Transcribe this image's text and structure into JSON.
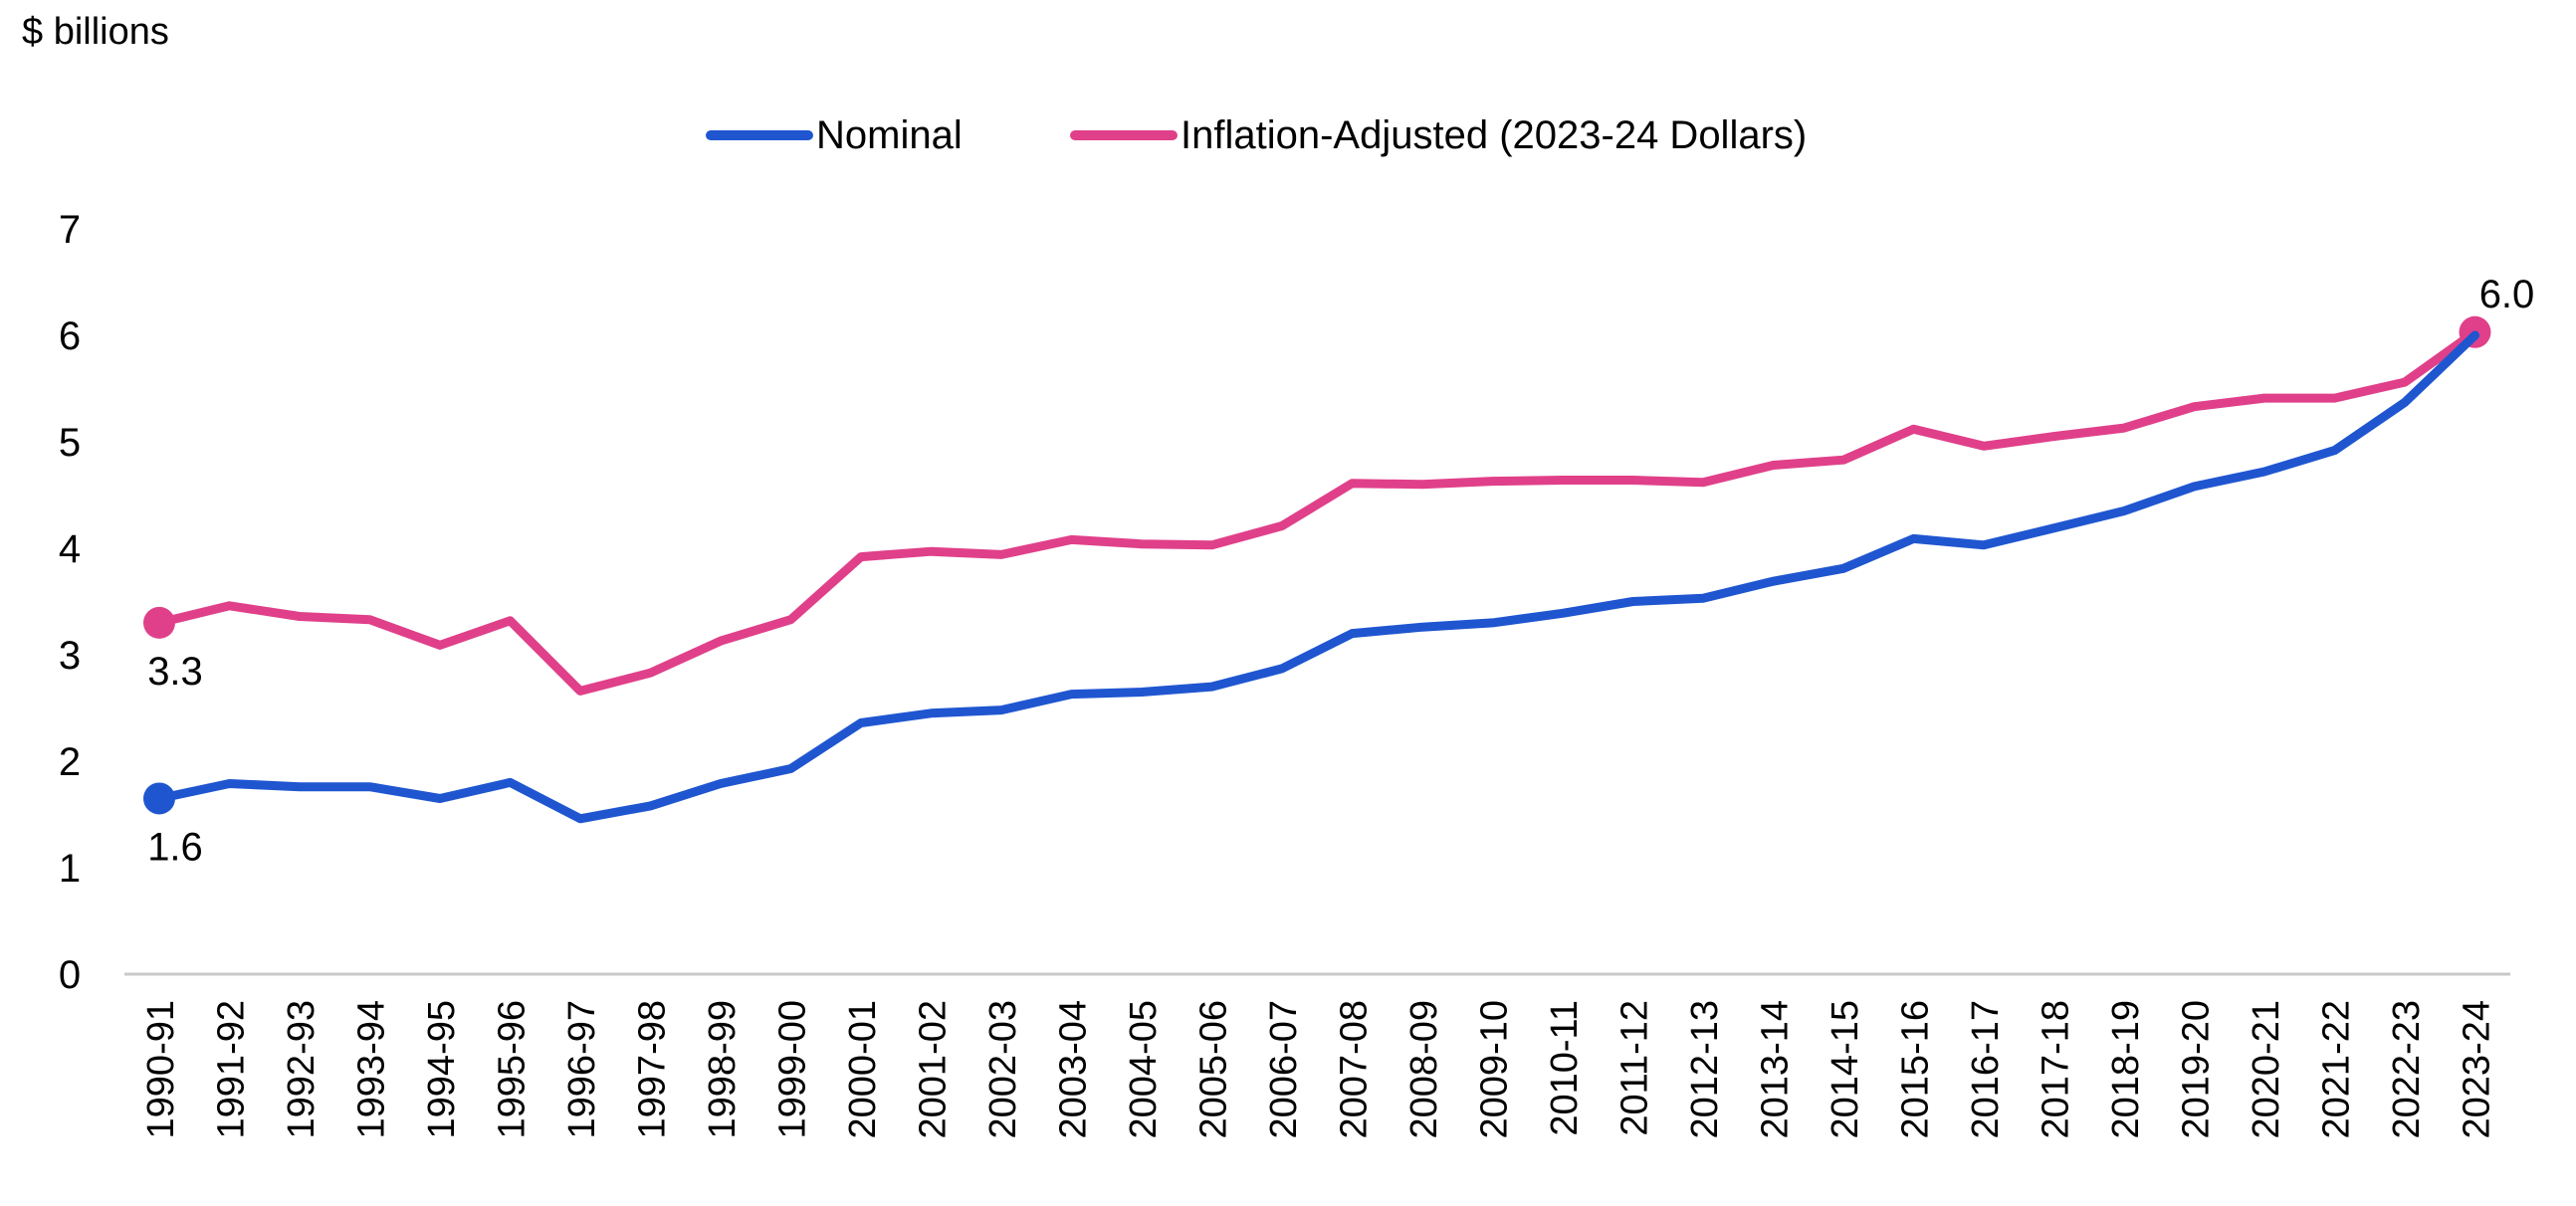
{
  "chart_data": {
    "type": "line",
    "ylabel": "$ billions",
    "ylim": [
      0,
      7
    ],
    "yticks": [
      "0",
      "1",
      "2",
      "3",
      "4",
      "5",
      "6",
      "7"
    ],
    "legend_position": "top-center",
    "grid": false,
    "categories": [
      "1990-91",
      "1991-92",
      "1992-93",
      "1993-94",
      "1994-95",
      "1995-96",
      "1996-97",
      "1997-98",
      "1998-99",
      "1999-00",
      "2000-01",
      "2001-02",
      "2002-03",
      "2003-04",
      "2004-05",
      "2005-06",
      "2006-07",
      "2007-08",
      "2008-09",
      "2009-10",
      "2010-11",
      "2011-12",
      "2012-13",
      "2013-14",
      "2014-15",
      "2015-16",
      "2016-17",
      "2017-18",
      "2018-19",
      "2019-20",
      "2020-21",
      "2021-22",
      "2022-23",
      "2023-24"
    ],
    "series": [
      {
        "name": "Nominal",
        "color": "#1f56d0",
        "values": [
          1.65,
          1.79,
          1.76,
          1.76,
          1.65,
          1.8,
          1.46,
          1.58,
          1.79,
          1.93,
          2.36,
          2.45,
          2.48,
          2.63,
          2.65,
          2.7,
          2.87,
          3.2,
          3.26,
          3.3,
          3.39,
          3.5,
          3.53,
          3.69,
          3.81,
          4.09,
          4.03,
          4.19,
          4.35,
          4.58,
          4.72,
          4.92,
          5.37,
          6.0
        ],
        "labels": [
          {
            "index": 0,
            "text": "1.6",
            "position": "below"
          }
        ]
      },
      {
        "name": "Inflation-Adjusted (2023-24 Dollars)",
        "color": "#e0408a",
        "values": [
          3.3,
          3.46,
          3.36,
          3.33,
          3.09,
          3.32,
          2.66,
          2.83,
          3.13,
          3.33,
          3.92,
          3.97,
          3.94,
          4.08,
          4.04,
          4.03,
          4.21,
          4.61,
          4.6,
          4.63,
          4.64,
          4.64,
          4.62,
          4.78,
          4.83,
          5.12,
          4.96,
          5.05,
          5.13,
          5.33,
          5.41,
          5.41,
          5.56,
          6.03
        ],
        "labels": [
          {
            "index": 0,
            "text": "3.3",
            "position": "below"
          },
          {
            "index": 33,
            "text": "6.0",
            "position": "above"
          }
        ]
      }
    ]
  }
}
